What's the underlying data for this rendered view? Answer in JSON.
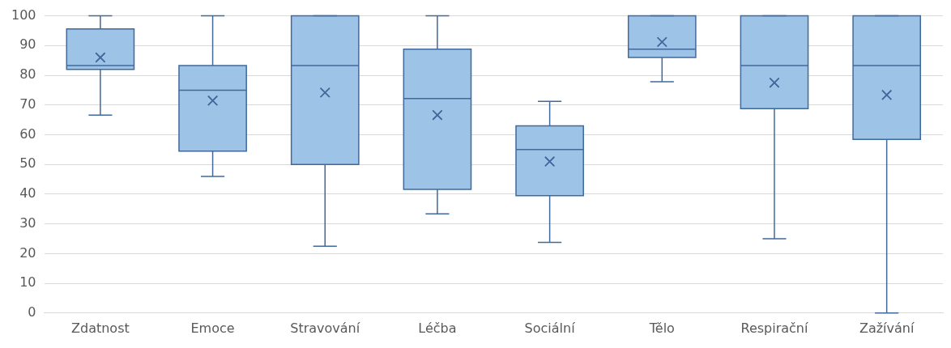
{
  "chart_data": {
    "type": "box",
    "categories": [
      "Zdatnost",
      "Emoce",
      "Stravování",
      "Léčba",
      "Sociální",
      "Tělo",
      "Respirační",
      "Zažívání"
    ],
    "boxes": [
      {
        "low": 66.6,
        "q1": 82,
        "median": 83.3,
        "q3": 95.6,
        "high": 100,
        "mean": 86
      },
      {
        "low": 46,
        "q1": 54.5,
        "median": 75,
        "q3": 83.3,
        "high": 100,
        "mean": 71.5
      },
      {
        "low": 22.5,
        "q1": 50,
        "median": 83.3,
        "q3": 100,
        "high": 100,
        "mean": 74.2
      },
      {
        "low": 33.4,
        "q1": 41.6,
        "median": 72.2,
        "q3": 88.8,
        "high": 100,
        "mean": 66.6
      },
      {
        "low": 23.8,
        "q1": 39.5,
        "median": 55,
        "q3": 63,
        "high": 71.2,
        "mean": 51
      },
      {
        "low": 77.8,
        "q1": 86,
        "median": 88.8,
        "q3": 100,
        "high": 100,
        "mean": 91.2
      },
      {
        "low": 25,
        "q1": 68.8,
        "median": 83.3,
        "q3": 100,
        "high": 100,
        "mean": 77.5
      },
      {
        "low": 0,
        "q1": 58.4,
        "median": 83.3,
        "q3": 100,
        "high": 100,
        "mean": 73.4
      }
    ],
    "color": "#9dc3e6",
    "ylim": [
      0,
      100
    ],
    "yticks": [
      0,
      10,
      20,
      30,
      40,
      50,
      60,
      70,
      80,
      90,
      100
    ],
    "grid": "y",
    "legend": false,
    "marker": "cross"
  }
}
